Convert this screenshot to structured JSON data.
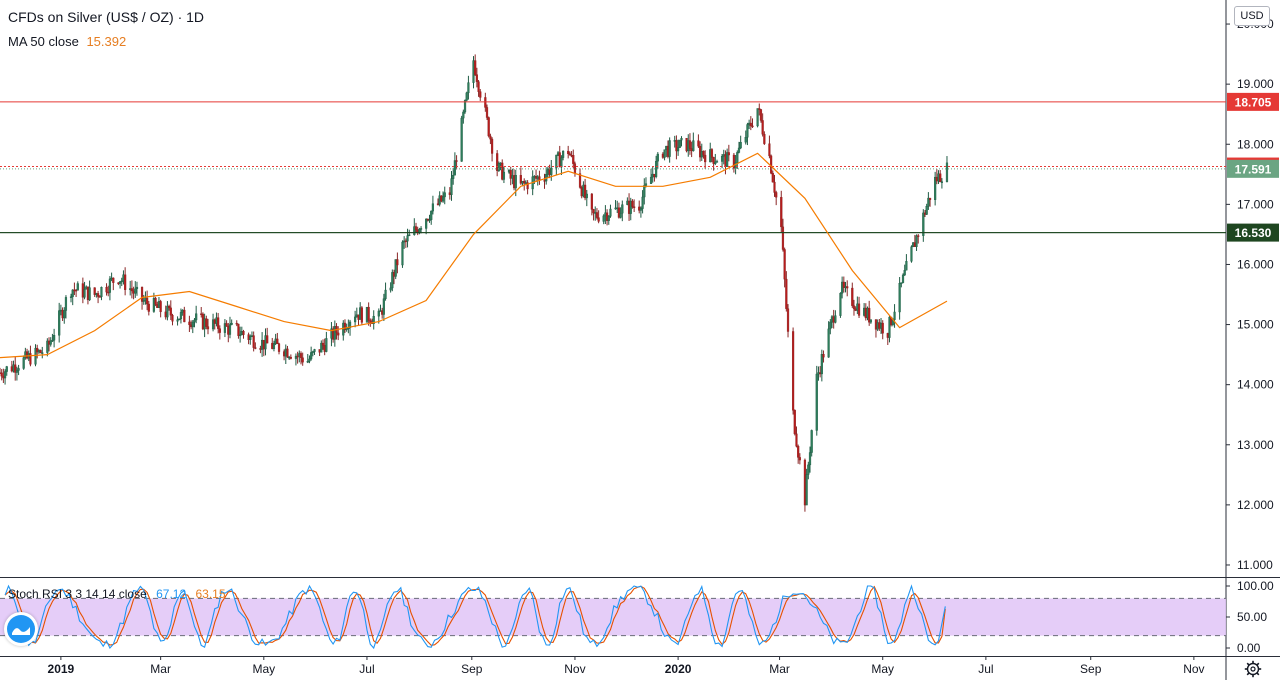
{
  "header": {
    "title": "CFDs on Silver (US$ / OZ) · 1D",
    "ma_label": "MA 50 close",
    "ma_value": "15.392"
  },
  "currency": "USD",
  "oscillator": {
    "label": "Stoch RSI 3 3 14 14 close",
    "k_value": "67.12",
    "d_value": "63.15",
    "ticks": [
      "100.00",
      "50.00",
      "0.00"
    ]
  },
  "price_axis": {
    "ticks": [
      "20.000",
      "19.000",
      "18.000",
      "17.000",
      "16.000",
      "15.000",
      "14.000",
      "13.000",
      "12.000",
      "11.000"
    ]
  },
  "time_axis": {
    "labels": [
      "2019",
      "Mar",
      "May",
      "Jul",
      "Sep",
      "Nov",
      "2020",
      "Mar",
      "May",
      "Jul",
      "Sep",
      "Nov"
    ]
  },
  "levels": [
    {
      "label": "18.705",
      "value": 18.705,
      "color": "#e53935"
    },
    {
      "label": "17.629",
      "value": 17.629,
      "color": "#e53935"
    },
    {
      "label": "17.591",
      "value": 17.591,
      "color": "#6ba583"
    },
    {
      "label": "16.530",
      "value": 16.53,
      "color": "#1e4620"
    }
  ],
  "colors": {
    "up": "#26a69a",
    "down": "#ef5350",
    "ma": "#f57c00",
    "stoch_k": "#2196f3",
    "stoch_d": "#e65100",
    "stoch_band": "#e1c4f7"
  },
  "chart_data": {
    "type": "line",
    "title": "CFDs on Silver (US$ / OZ) · 1D",
    "ylim": [
      10.8,
      20.4
    ],
    "x_range": [
      "2018-11-26",
      "2020-11-20"
    ],
    "series": [
      {
        "name": "CFDs on Silver (US$ / OZ)",
        "x": [
          "2018-11-26",
          "2018-12-10",
          "2018-12-24",
          "2019-01-07",
          "2019-01-21",
          "2019-02-04",
          "2019-02-18",
          "2019-03-04",
          "2019-03-18",
          "2019-04-01",
          "2019-04-15",
          "2019-04-29",
          "2019-05-13",
          "2019-05-27",
          "2019-06-10",
          "2019-06-24",
          "2019-07-08",
          "2019-07-22",
          "2019-08-05",
          "2019-08-19",
          "2019-09-02",
          "2019-09-16",
          "2019-09-30",
          "2019-10-14",
          "2019-10-28",
          "2019-11-11",
          "2019-11-25",
          "2019-12-09",
          "2019-12-23",
          "2020-01-06",
          "2020-01-20",
          "2020-02-03",
          "2020-02-17",
          "2020-02-24",
          "2020-03-02",
          "2020-03-09",
          "2020-03-16",
          "2020-03-23",
          "2020-04-06",
          "2020-04-20",
          "2020-05-04",
          "2020-05-18",
          "2020-06-01",
          "2020-06-08"
        ],
        "values": [
          14.2,
          14.4,
          14.6,
          15.6,
          15.5,
          15.8,
          15.4,
          15.2,
          15.1,
          15.0,
          14.9,
          14.7,
          14.6,
          14.4,
          14.8,
          15.2,
          15.1,
          16.3,
          16.8,
          17.2,
          19.4,
          17.6,
          17.3,
          17.5,
          17.9,
          16.8,
          16.9,
          17.0,
          17.9,
          18.0,
          17.8,
          17.7,
          18.6,
          17.8,
          16.6,
          13.5,
          12.1,
          14.1,
          15.6,
          15.2,
          14.9,
          16.2,
          17.4,
          17.59
        ]
      },
      {
        "name": "MA 50 close",
        "x": [
          "2018-11-26",
          "2018-12-24",
          "2019-01-21",
          "2019-02-18",
          "2019-03-18",
          "2019-04-15",
          "2019-05-13",
          "2019-06-10",
          "2019-07-08",
          "2019-08-05",
          "2019-09-02",
          "2019-09-30",
          "2019-10-28",
          "2019-11-25",
          "2019-12-23",
          "2020-01-20",
          "2020-02-17",
          "2020-03-16",
          "2020-04-13",
          "2020-05-11",
          "2020-06-08"
        ],
        "values": [
          14.45,
          14.5,
          14.9,
          15.45,
          15.55,
          15.3,
          15.05,
          14.9,
          15.05,
          15.4,
          16.5,
          17.3,
          17.55,
          17.3,
          17.3,
          17.45,
          17.85,
          17.1,
          15.9,
          14.95,
          15.39
        ]
      }
    ],
    "levels": [
      18.705,
      17.629,
      16.53
    ],
    "last_price": 17.591,
    "oscillator": {
      "name": "Stoch RSI 3 3 14 14 close",
      "ylim": [
        0,
        100
      ],
      "band": [
        20,
        80
      ],
      "k_last": 67.12,
      "d_last": 63.15
    }
  }
}
